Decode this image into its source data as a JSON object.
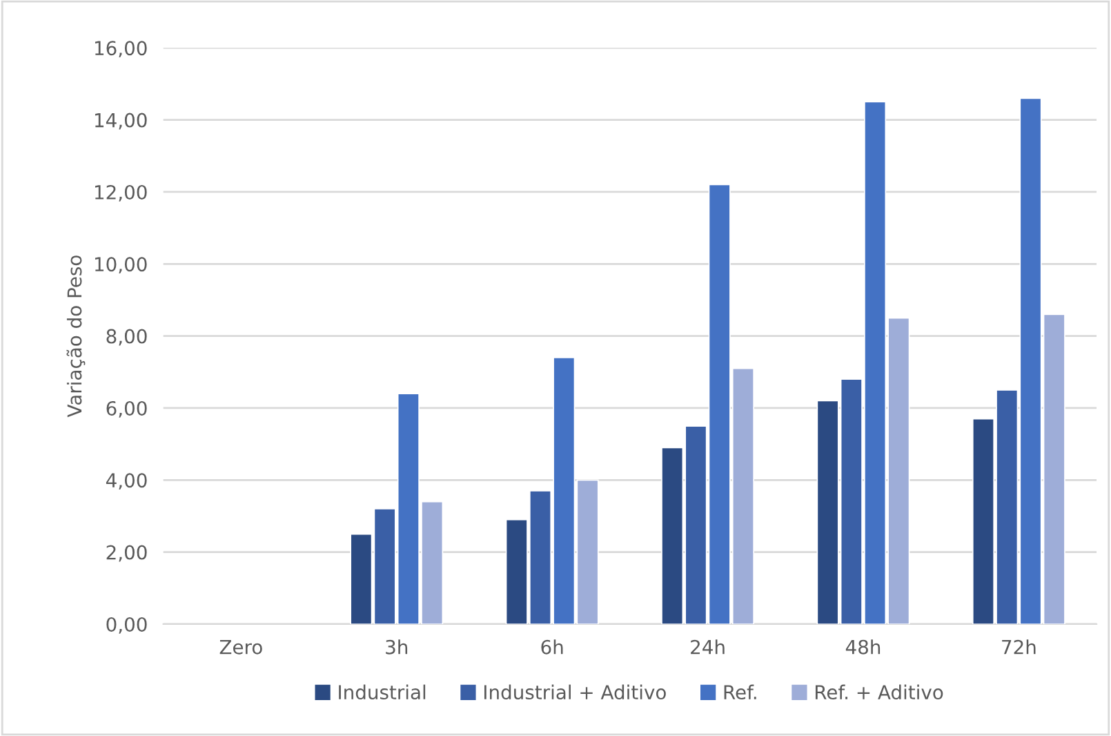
{
  "chart_data": {
    "type": "bar",
    "ylabel": "Variação do Peso",
    "categories": [
      "Zero",
      "3h",
      "6h",
      "24h",
      "48h",
      "72h"
    ],
    "series": [
      {
        "name": "Industrial",
        "color": "#2b4a82",
        "values": [
          0,
          2.5,
          2.9,
          4.9,
          6.2,
          5.7
        ]
      },
      {
        "name": "Industrial + Aditivo",
        "color": "#3a5fa6",
        "values": [
          0,
          3.2,
          3.7,
          5.5,
          6.8,
          6.5
        ]
      },
      {
        "name": "Ref.",
        "color": "#4472c4",
        "values": [
          0,
          6.4,
          7.4,
          12.2,
          14.5,
          14.6
        ]
      },
      {
        "name": "Ref. + Aditivo",
        "color": "#9eadd8",
        "values": [
          0,
          3.4,
          4.0,
          7.1,
          8.5,
          8.6
        ]
      }
    ],
    "ylim": [
      0,
      16
    ],
    "yticks": [
      {
        "value": 0,
        "label": "0,00"
      },
      {
        "value": 2,
        "label": "2,00"
      },
      {
        "value": 4,
        "label": "4,00"
      },
      {
        "value": 6,
        "label": "6,00"
      },
      {
        "value": 8,
        "label": "8,00"
      },
      {
        "value": 10,
        "label": "10,00"
      },
      {
        "value": 12,
        "label": "12,00"
      },
      {
        "value": 14,
        "label": "14,00"
      },
      {
        "value": 16,
        "label": "16,00"
      }
    ],
    "grid": "y",
    "legend": "bottom"
  }
}
